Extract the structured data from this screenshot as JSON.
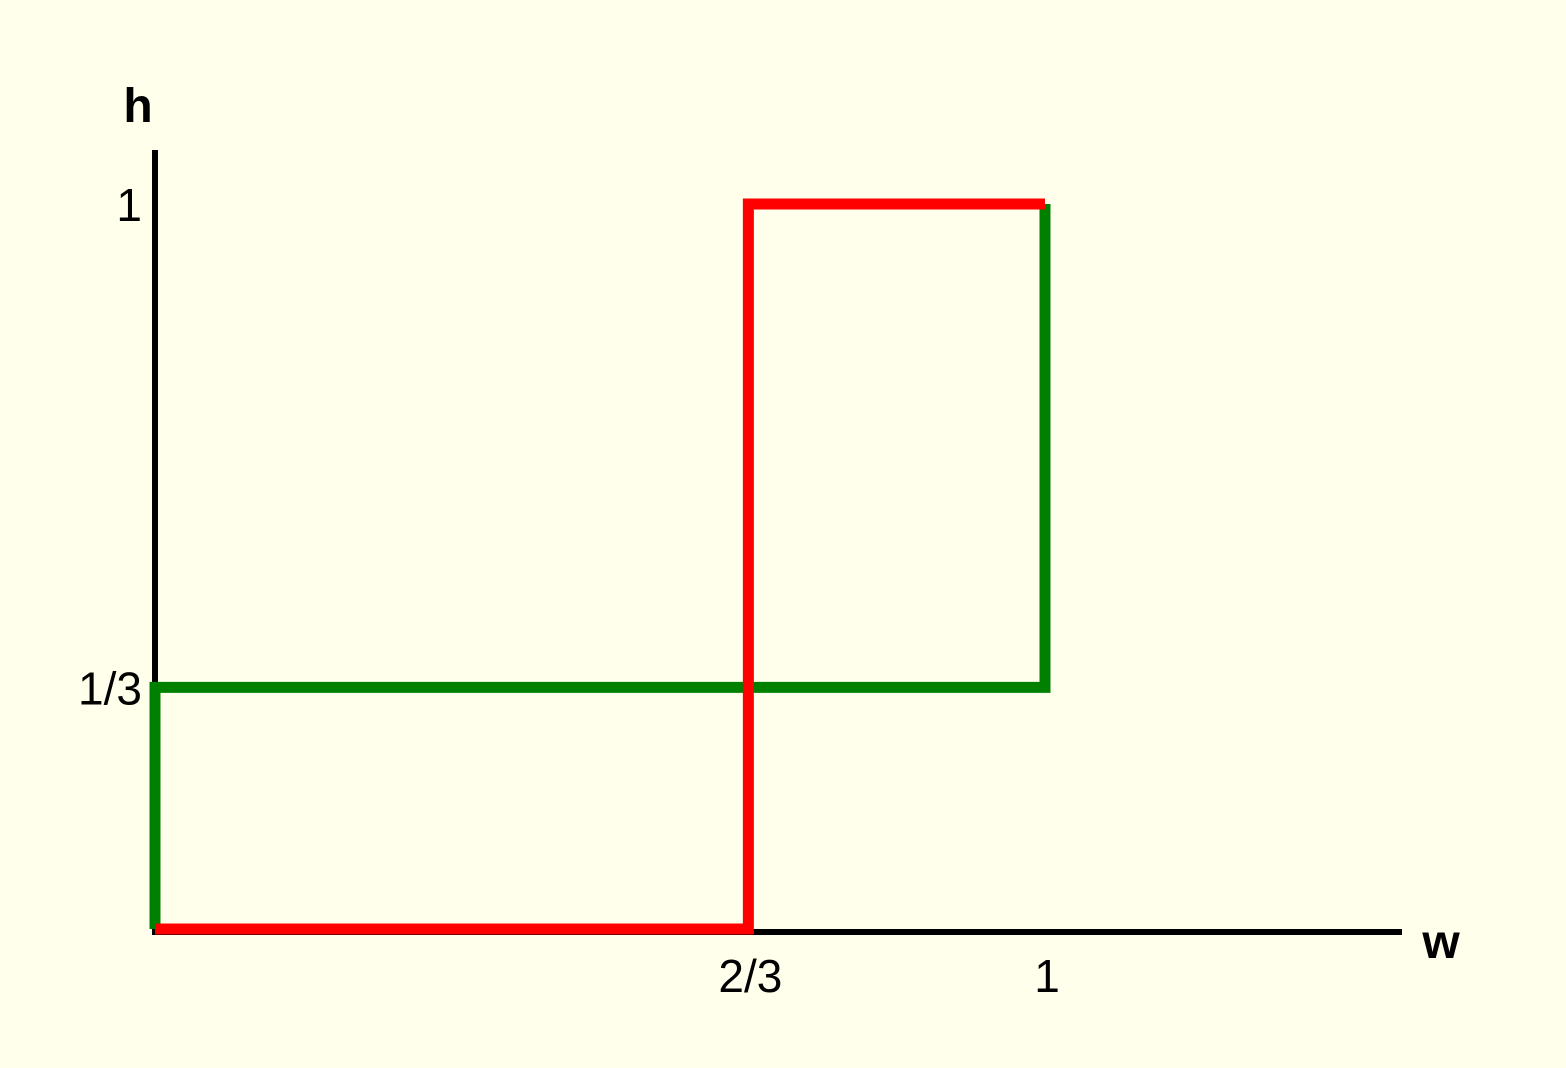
{
  "chart_data": {
    "type": "line",
    "xlabel": "w",
    "ylabel": "h",
    "x_ticks": [
      {
        "value": 0.6667,
        "label": "2/3"
      },
      {
        "value": 1,
        "label": "1"
      }
    ],
    "y_ticks": [
      {
        "value": 0.3333,
        "label": "1/3"
      },
      {
        "value": 1,
        "label": "1"
      }
    ],
    "xlim": [
      0,
      1.4
    ],
    "ylim": [
      0,
      1.1
    ],
    "grid": false,
    "series": [
      {
        "color": "#008000",
        "points": [
          [
            0,
            0
          ],
          [
            0,
            0.3333
          ],
          [
            1,
            0.3333
          ],
          [
            1,
            1
          ]
        ]
      },
      {
        "color": "#FF0000",
        "points": [
          [
            0,
            0
          ],
          [
            0.6667,
            0
          ],
          [
            0.6667,
            1
          ],
          [
            1,
            1
          ]
        ]
      }
    ]
  }
}
